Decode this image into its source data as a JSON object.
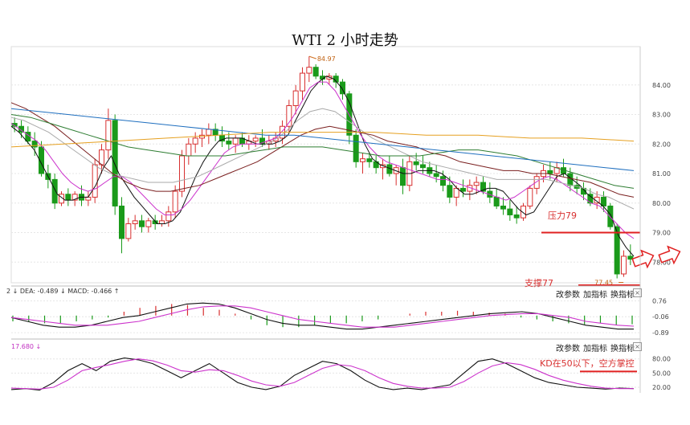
{
  "title": "WTI 2 小时走势",
  "chart_data": [
    {
      "type": "candlestick",
      "title": "WTI 2 小时走势",
      "ylim": [
        77.3,
        85.3
      ],
      "y_ticks": [
        "84.00",
        "83.00",
        "82.00",
        "81.00",
        "80.00",
        "79.00",
        "78.00"
      ],
      "y_tick_values": [
        84,
        83,
        82,
        81,
        80,
        79,
        78
      ],
      "high_label": "84.97",
      "low_label": "77.45",
      "candles": [
        [
          82.7,
          82.9,
          82.4,
          82.6
        ],
        [
          82.6,
          82.8,
          82.2,
          82.4
        ],
        [
          82.4,
          82.6,
          82.0,
          82.1
        ],
        [
          82.1,
          82.4,
          81.6,
          81.9
        ],
        [
          81.9,
          82.1,
          80.9,
          81.0
        ],
        [
          81.0,
          81.3,
          80.5,
          80.8
        ],
        [
          80.8,
          81.0,
          79.8,
          80.0
        ],
        [
          80.0,
          80.4,
          79.9,
          80.3
        ],
        [
          80.3,
          80.5,
          79.9,
          80.1
        ],
        [
          80.1,
          80.4,
          79.9,
          80.3
        ],
        [
          80.3,
          80.6,
          79.9,
          80.1
        ],
        [
          80.1,
          80.4,
          79.9,
          80.2
        ],
        [
          80.2,
          81.5,
          80.0,
          81.3
        ],
        [
          81.3,
          82.0,
          81.0,
          81.8
        ],
        [
          81.8,
          83.2,
          81.5,
          82.8
        ],
        [
          82.8,
          83.0,
          79.6,
          79.9
        ],
        [
          79.9,
          80.2,
          78.3,
          78.8
        ],
        [
          78.8,
          79.5,
          78.7,
          79.3
        ],
        [
          79.3,
          79.6,
          79.1,
          79.4
        ],
        [
          79.4,
          79.6,
          79.0,
          79.2
        ],
        [
          79.2,
          79.5,
          79.0,
          79.4
        ],
        [
          79.4,
          79.6,
          79.1,
          79.3
        ],
        [
          79.3,
          79.6,
          79.2,
          79.4
        ],
        [
          79.4,
          79.9,
          79.2,
          79.7
        ],
        [
          79.7,
          80.6,
          79.5,
          80.4
        ],
        [
          80.4,
          81.8,
          80.2,
          81.6
        ],
        [
          81.6,
          82.2,
          81.3,
          82.0
        ],
        [
          82.0,
          82.4,
          81.7,
          82.2
        ],
        [
          82.2,
          82.5,
          81.9,
          82.3
        ],
        [
          82.3,
          82.7,
          82.0,
          82.5
        ],
        [
          82.5,
          82.7,
          82.1,
          82.3
        ],
        [
          82.3,
          82.6,
          81.9,
          82.1
        ],
        [
          82.1,
          82.4,
          81.8,
          82.0
        ],
        [
          82.0,
          82.3,
          81.7,
          82.2
        ],
        [
          82.2,
          82.4,
          81.9,
          82.0
        ],
        [
          82.0,
          82.3,
          81.8,
          82.1
        ],
        [
          82.1,
          82.3,
          81.9,
          82.2
        ],
        [
          82.2,
          82.5,
          81.9,
          82.0
        ],
        [
          82.0,
          82.3,
          81.8,
          82.1
        ],
        [
          82.1,
          82.4,
          81.9,
          82.2
        ],
        [
          82.2,
          82.8,
          82.0,
          82.6
        ],
        [
          82.6,
          83.5,
          82.4,
          83.3
        ],
        [
          83.3,
          84.0,
          83.0,
          83.8
        ],
        [
          83.8,
          84.6,
          83.5,
          84.4
        ],
        [
          84.4,
          84.97,
          84.1,
          84.6
        ],
        [
          84.6,
          84.7,
          84.2,
          84.3
        ],
        [
          84.3,
          84.5,
          84.0,
          84.2
        ],
        [
          84.2,
          84.4,
          84.0,
          84.3
        ],
        [
          84.3,
          84.4,
          83.9,
          84.1
        ],
        [
          84.1,
          84.2,
          83.5,
          83.7
        ],
        [
          83.7,
          83.8,
          82.0,
          82.3
        ],
        [
          82.3,
          82.5,
          81.2,
          81.4
        ],
        [
          81.4,
          81.7,
          81.0,
          81.5
        ],
        [
          81.5,
          81.7,
          81.2,
          81.4
        ],
        [
          81.4,
          81.6,
          81.0,
          81.2
        ],
        [
          81.2,
          81.5,
          80.8,
          81.3
        ],
        [
          81.3,
          81.6,
          80.9,
          81.0
        ],
        [
          81.0,
          81.3,
          80.6,
          81.2
        ],
        [
          81.2,
          81.5,
          80.3,
          80.6
        ],
        [
          80.6,
          81.6,
          80.4,
          81.4
        ],
        [
          81.4,
          81.7,
          81.1,
          81.3
        ],
        [
          81.3,
          81.6,
          81.0,
          81.2
        ],
        [
          81.2,
          81.4,
          80.9,
          81.0
        ],
        [
          81.0,
          81.3,
          80.7,
          80.9
        ],
        [
          80.9,
          81.1,
          80.4,
          80.6
        ],
        [
          80.6,
          80.9,
          80.0,
          80.2
        ],
        [
          80.2,
          80.6,
          79.9,
          80.5
        ],
        [
          80.5,
          80.8,
          80.2,
          80.4
        ],
        [
          80.4,
          80.8,
          80.1,
          80.6
        ],
        [
          80.6,
          80.9,
          80.3,
          80.7
        ],
        [
          80.7,
          80.9,
          80.3,
          80.4
        ],
        [
          80.4,
          80.7,
          80.0,
          80.2
        ],
        [
          80.2,
          80.5,
          79.8,
          79.9
        ],
        [
          79.9,
          80.2,
          79.6,
          79.8
        ],
        [
          79.8,
          80.1,
          79.4,
          79.6
        ],
        [
          79.6,
          79.9,
          79.3,
          79.5
        ],
        [
          79.5,
          80.0,
          79.4,
          79.9
        ],
        [
          79.9,
          80.6,
          79.8,
          80.5
        ],
        [
          80.5,
          81.0,
          80.3,
          80.9
        ],
        [
          80.9,
          81.3,
          80.7,
          81.1
        ],
        [
          81.1,
          81.4,
          80.8,
          81.0
        ],
        [
          81.0,
          81.4,
          80.7,
          81.2
        ],
        [
          81.2,
          81.5,
          80.9,
          81.0
        ],
        [
          81.0,
          81.2,
          80.4,
          80.6
        ],
        [
          80.6,
          80.9,
          80.3,
          80.5
        ],
        [
          80.5,
          80.7,
          80.1,
          80.3
        ],
        [
          80.3,
          80.5,
          79.9,
          80.0
        ],
        [
          80.0,
          80.4,
          79.8,
          80.2
        ],
        [
          80.2,
          80.4,
          79.7,
          79.9
        ],
        [
          79.9,
          80.0,
          79.1,
          79.2
        ],
        [
          79.2,
          79.3,
          77.45,
          77.6
        ],
        [
          77.6,
          78.4,
          77.5,
          78.2
        ],
        [
          78.2,
          78.6,
          77.9,
          78.1
        ]
      ],
      "moving_averages": [
        {
          "name": "MA5",
          "color": "#111111",
          "values": [
            82.6,
            82.4,
            82.1,
            81.8,
            81.3,
            80.8,
            80.3,
            80.1,
            80.1,
            80.2,
            80.2,
            80.6,
            81.2,
            81.6,
            81.0,
            80.6,
            80.2,
            79.9,
            79.6,
            79.3,
            79.3,
            79.4,
            79.7,
            80.3,
            80.9,
            81.4,
            81.8,
            82.1,
            82.2,
            82.2,
            82.2,
            82.1,
            82.0,
            82.0,
            82.0,
            82.1,
            82.3,
            82.8,
            83.3,
            83.8,
            84.1,
            84.3,
            84.2,
            83.9,
            83.4,
            82.7,
            82.0,
            81.5,
            81.3,
            81.2,
            81.1,
            81.0,
            81.0,
            81.1,
            81.1,
            81.1,
            81.0,
            80.8,
            80.5,
            80.3,
            80.3,
            80.4,
            80.5,
            80.5,
            80.4,
            80.1,
            79.8,
            79.6,
            79.7,
            80.1,
            80.5,
            80.9,
            81.0,
            80.8,
            80.6,
            80.3,
            80.1,
            79.9,
            79.6,
            78.9,
            78.5,
            78.2
          ]
        },
        {
          "name": "MA10",
          "color": "#cc33cc",
          "values": [
            82.7,
            82.5,
            82.3,
            82.1,
            81.8,
            81.4,
            81.0,
            80.7,
            80.5,
            80.4,
            80.5,
            80.7,
            80.9,
            80.9,
            80.7,
            80.4,
            80.1,
            79.8,
            79.6,
            79.6,
            79.8,
            80.1,
            80.5,
            80.9,
            81.3,
            81.7,
            81.9,
            82.0,
            82.0,
            82.0,
            82.1,
            82.2,
            82.5,
            82.9,
            83.4,
            83.9,
            84.1,
            84.1,
            83.8,
            83.3,
            82.8,
            82.3,
            81.9,
            81.6,
            81.4,
            81.3,
            81.2,
            81.1,
            81.0,
            80.9,
            80.8,
            80.8,
            80.7,
            80.6,
            80.5,
            80.4,
            80.3,
            80.2,
            80.1,
            80.2,
            80.4,
            80.6,
            80.8,
            80.9,
            80.8,
            80.6,
            80.4,
            80.2,
            80.0,
            79.9,
            79.6,
            79.3,
            79.0,
            78.8
          ]
        },
        {
          "name": "MA20",
          "color": "#aaaaaa",
          "values": [
            82.9,
            82.8,
            82.6,
            82.4,
            82.1,
            81.8,
            81.5,
            81.2,
            81.0,
            80.9,
            80.8,
            80.7,
            80.7,
            80.7,
            80.8,
            80.9,
            81.1,
            81.3,
            81.5,
            81.7,
            81.9,
            82.1,
            82.4,
            82.8,
            83.1,
            83.2,
            83.1,
            82.8,
            82.5,
            82.2,
            82.0,
            81.8,
            81.6,
            81.4,
            81.3,
            81.2,
            81.1,
            81.0,
            80.9,
            80.8,
            80.8,
            80.8,
            80.8,
            80.8,
            80.7,
            80.6,
            80.5,
            80.3,
            80.2,
            80.0,
            79.8
          ]
        },
        {
          "name": "MA30",
          "color": "#7a1f1f",
          "values": [
            83.4,
            83.2,
            82.9,
            82.6,
            82.2,
            81.8,
            81.4,
            81.0,
            80.7,
            80.5,
            80.4,
            80.4,
            80.5,
            80.6,
            80.8,
            81.0,
            81.2,
            81.4,
            81.7,
            82.0,
            82.3,
            82.5,
            82.6,
            82.5,
            82.4,
            82.3,
            82.1,
            82.0,
            81.9,
            81.7,
            81.6,
            81.4,
            81.3,
            81.2,
            81.1,
            81.1,
            81.0,
            81.0,
            80.9,
            80.8,
            80.7,
            80.5,
            80.3,
            80.2
          ]
        },
        {
          "name": "MA60",
          "color": "#2e7d32",
          "values": [
            83.0,
            82.9,
            82.7,
            82.5,
            82.3,
            82.1,
            81.9,
            81.8,
            81.7,
            81.6,
            81.6,
            81.6,
            81.7,
            81.8,
            81.9,
            81.9,
            81.9,
            81.8,
            81.7,
            81.6,
            81.6,
            81.6,
            81.7,
            81.8,
            81.8,
            81.7,
            81.6,
            81.4,
            81.2,
            81.0,
            80.8,
            80.6,
            80.5
          ]
        },
        {
          "name": "MA120",
          "color": "#1f6fbf",
          "values": [
            83.2,
            83.1,
            83.0,
            82.9,
            82.8,
            82.7,
            82.6,
            82.5,
            82.4,
            82.3,
            82.3,
            82.2,
            82.1,
            82.0,
            81.9,
            81.8,
            81.7,
            81.6,
            81.5,
            81.4,
            81.3,
            81.2,
            81.1
          ]
        },
        {
          "name": "MA250",
          "color": "#e6a020",
          "values": [
            81.9,
            82.0,
            82.1,
            82.2,
            82.3,
            82.4,
            82.4,
            82.4,
            82.3,
            82.3,
            82.2,
            82.2,
            82.1
          ]
        }
      ],
      "annotations": {
        "resistance_label": "压力79",
        "resistance_value": 79.0,
        "support_label": "支撑77",
        "support_value": 77.0
      }
    },
    {
      "type": "macd",
      "header_values": "2 ↓ DEA: -0.489 ↓ MACD: -0.466 ↑",
      "y_ticks": [
        "0.76",
        "-0.06",
        "-0.89"
      ],
      "y_tick_values": [
        0.76,
        -0.06,
        -0.89
      ],
      "ylim": [
        -1.05,
        0.95
      ],
      "dif": [
        -0.1,
        -0.3,
        -0.5,
        -0.6,
        -0.6,
        -0.5,
        -0.3,
        -0.1,
        0.0,
        0.2,
        0.4,
        0.6,
        0.65,
        0.6,
        0.4,
        0.1,
        -0.2,
        -0.4,
        -0.5,
        -0.5,
        -0.6,
        -0.7,
        -0.7,
        -0.6,
        -0.5,
        -0.4,
        -0.3,
        -0.2,
        -0.1,
        0.0,
        0.1,
        0.15,
        0.2,
        0.1,
        -0.1,
        -0.3,
        -0.5,
        -0.6,
        -0.7,
        -0.7
      ],
      "dea": [
        -0.1,
        -0.2,
        -0.3,
        -0.4,
        -0.5,
        -0.5,
        -0.5,
        -0.4,
        -0.3,
        -0.1,
        0.1,
        0.3,
        0.45,
        0.5,
        0.5,
        0.4,
        0.2,
        0.0,
        -0.2,
        -0.3,
        -0.4,
        -0.5,
        -0.6,
        -0.6,
        -0.6,
        -0.5,
        -0.4,
        -0.3,
        -0.2,
        -0.1,
        0.0,
        0.05,
        0.1,
        0.1,
        0.0,
        -0.1,
        -0.3,
        -0.4,
        -0.5,
        -0.55
      ],
      "macd_hist": [
        -0.3,
        -0.3,
        -0.4,
        -0.4,
        -0.3,
        -0.2,
        -0.1,
        0.2,
        0.4,
        0.5,
        0.6,
        0.55,
        0.4,
        0.3,
        0.1,
        -0.2,
        -0.5,
        -0.6,
        -0.6,
        -0.5,
        -0.4,
        -0.4,
        -0.3,
        -0.2,
        0.0,
        0.1,
        0.2,
        0.2,
        0.25,
        0.2,
        0.15,
        0.1,
        -0.1,
        -0.2,
        -0.3,
        -0.4,
        -0.45,
        -0.4,
        -0.5,
        -0.45
      ],
      "buttons": [
        "改参数",
        "加指标",
        "换指标"
      ]
    },
    {
      "type": "kdj",
      "header_value": "17.680 ↓",
      "y_ticks": [
        "80.00",
        "50.00",
        "20.00"
      ],
      "y_tick_values": [
        80,
        50,
        20
      ],
      "ylim": [
        8,
        100
      ],
      "k": [
        15,
        17,
        14,
        30,
        55,
        70,
        55,
        75,
        82,
        78,
        70,
        55,
        40,
        55,
        70,
        50,
        30,
        20,
        15,
        22,
        45,
        60,
        75,
        70,
        55,
        35,
        20,
        15,
        18,
        15,
        20,
        25,
        50,
        75,
        80,
        70,
        55,
        40,
        30,
        25,
        20,
        18,
        16,
        18,
        17
      ],
      "d": [
        18,
        17,
        16,
        20,
        35,
        55,
        62,
        68,
        75,
        80,
        76,
        67,
        55,
        52,
        57,
        55,
        45,
        33,
        25,
        22,
        30,
        45,
        60,
        68,
        65,
        55,
        40,
        28,
        22,
        18,
        18,
        20,
        32,
        50,
        65,
        72,
        68,
        58,
        45,
        35,
        28,
        22,
        18,
        17,
        17
      ],
      "buttons": [
        "改参数",
        "加指标",
        "换指标"
      ],
      "annotation": "KD在50以下，空方掌控"
    }
  ]
}
